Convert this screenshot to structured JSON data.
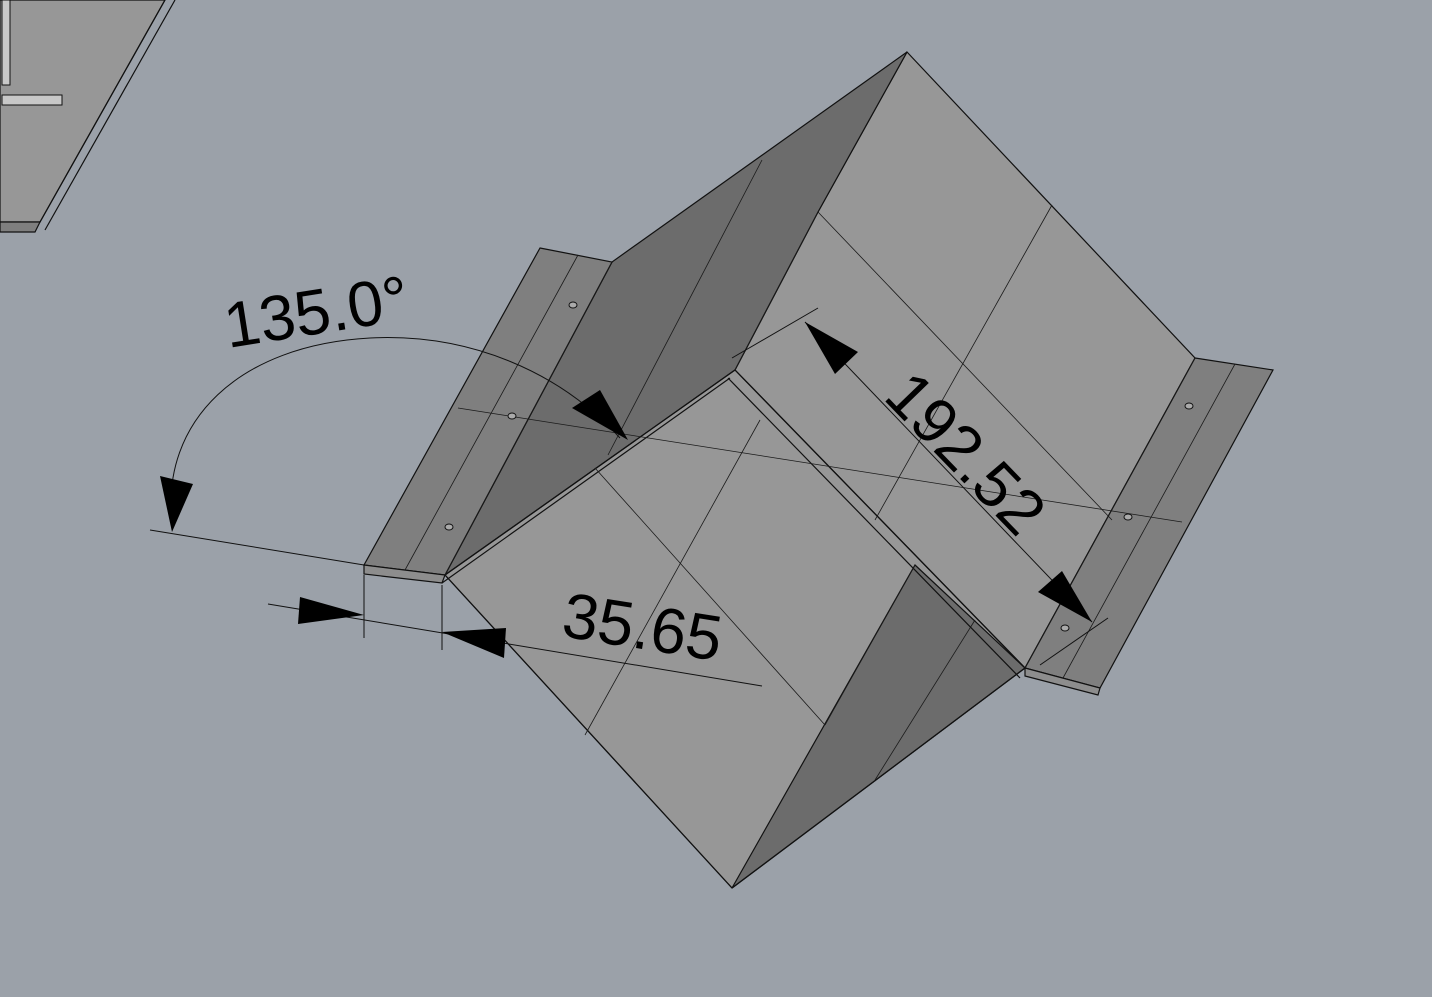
{
  "viewport": {
    "background": "#9ba1a9",
    "part_color": "#979797"
  },
  "dimensions": {
    "angle": "135.0°",
    "flange_width": "35.65",
    "length": "192.52"
  }
}
